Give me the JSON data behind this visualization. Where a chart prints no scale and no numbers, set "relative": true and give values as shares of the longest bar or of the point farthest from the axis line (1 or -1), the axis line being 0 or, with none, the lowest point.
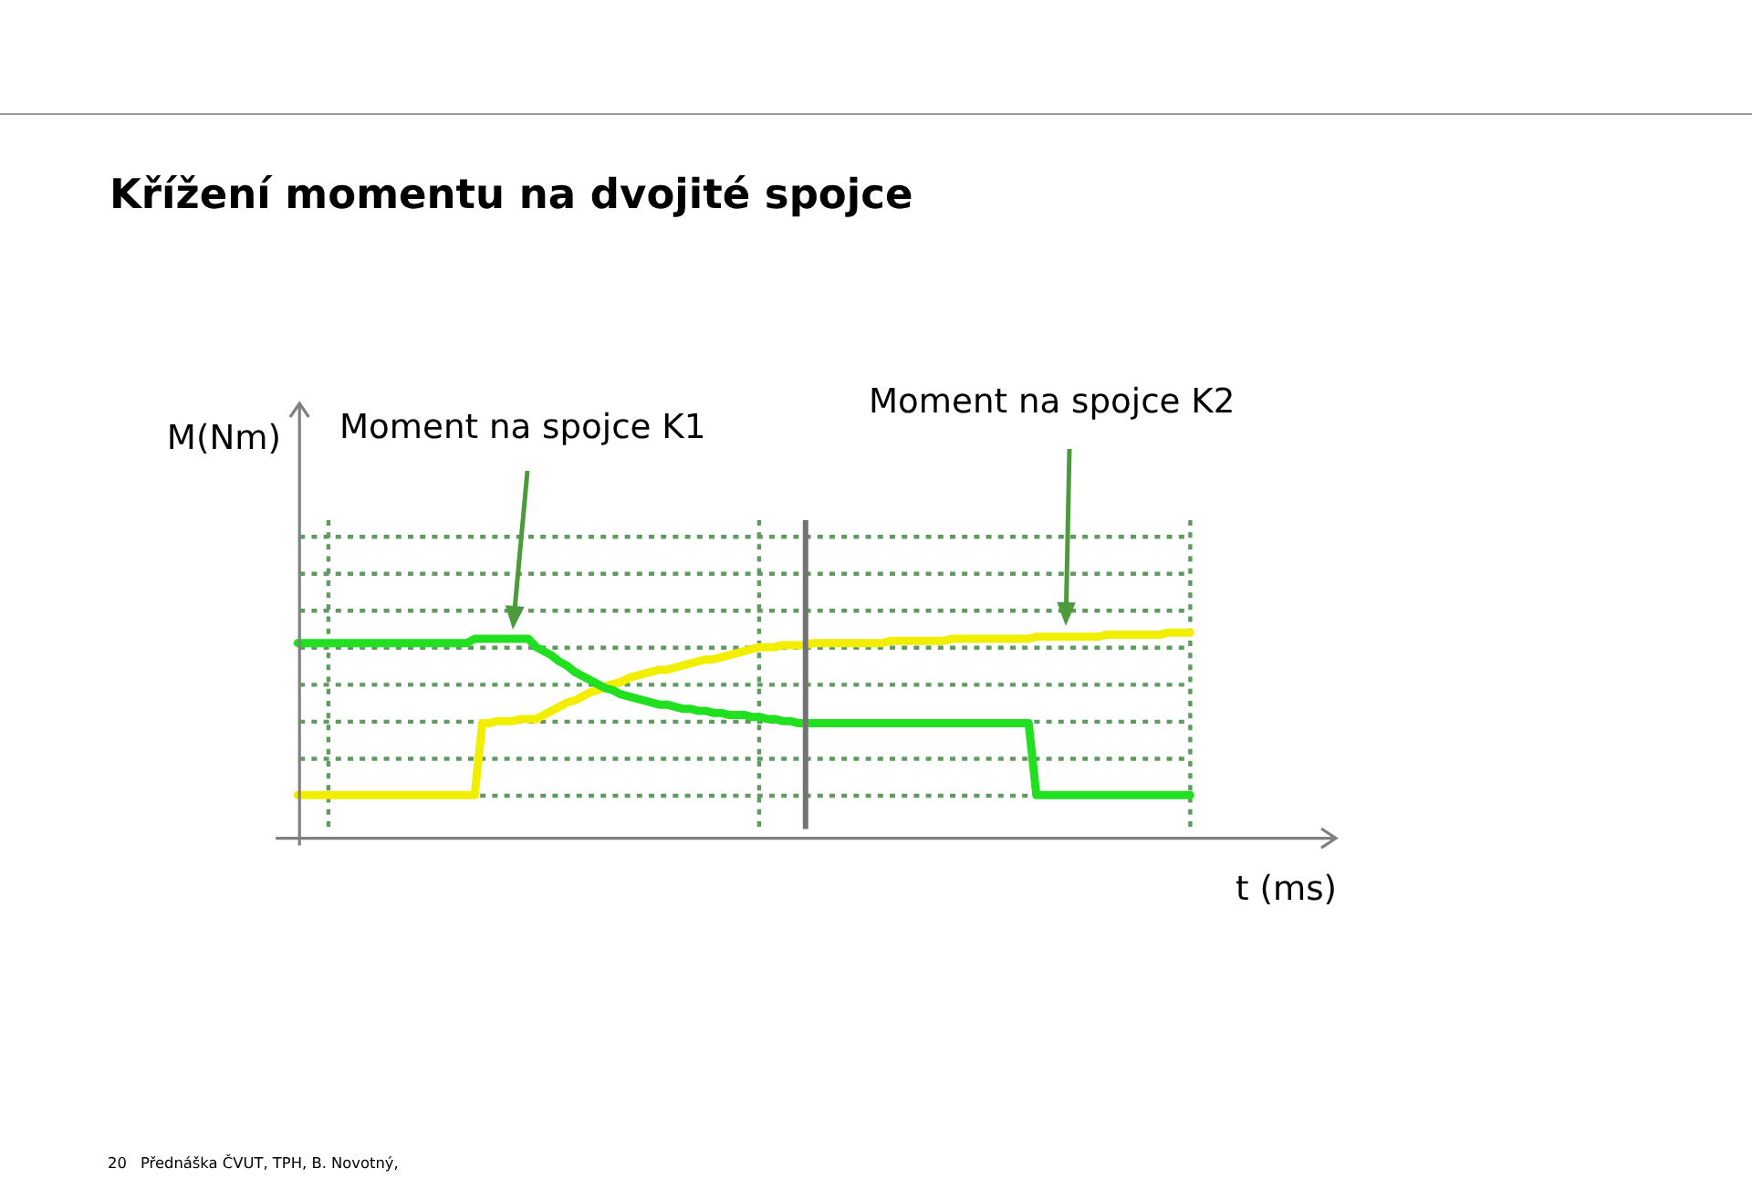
{
  "chart_data": {
    "type": "line",
    "title": "Křížení momentu na dvojité spojce",
    "xlabel": "t (ms)",
    "annotations": [
      "M(Nm)",
      "Moment na spojce K1",
      "Moment na spojce K2",
      "20",
      "Přednáška ČVUT, TPH, B. Novotný,"
    ],
    "relative": true,
    "grid": true,
    "tick_labels": false,
    "categories": [
      null,
      null,
      null,
      null,
      null,
      null,
      null,
      null,
      null,
      null,
      null,
      null,
      null,
      null,
      null,
      null,
      null,
      null,
      null,
      null,
      null,
      null,
      null,
      null,
      null,
      null,
      null,
      null,
      null,
      null,
      null,
      null,
      null,
      null,
      null,
      null,
      null,
      null,
      null,
      null,
      null,
      null,
      null,
      null,
      null,
      null,
      null,
      null,
      null,
      null,
      null,
      null,
      null,
      null,
      null,
      null,
      null,
      null,
      null,
      null,
      null,
      null,
      null,
      null,
      null,
      null,
      null,
      null,
      null,
      null,
      null,
      null,
      null,
      null,
      null,
      null,
      null,
      null,
      null,
      null,
      null,
      null,
      null,
      null,
      null,
      null,
      null,
      null,
      null,
      null,
      null,
      null,
      null,
      null,
      null,
      null,
      null,
      null,
      null,
      null,
      null,
      null,
      null,
      null,
      null,
      null,
      null,
      null,
      null,
      null,
      null,
      null,
      null,
      null,
      null,
      null,
      null
    ],
    "series": [
      {
        "color": "#20e020",
        "values": [
          0.95,
          0.95,
          0.95,
          0.95,
          0.95,
          0.95,
          0.95,
          0.95,
          0.95,
          0.95,
          0.95,
          0.95,
          0.95,
          0.95,
          0.95,
          0.95,
          0.95,
          0.95,
          0.95,
          0.95,
          0.95,
          0.95,
          0.95,
          0.97,
          0.97,
          0.97,
          0.97,
          0.97,
          0.97,
          0.97,
          0.97,
          0.93,
          0.91,
          0.89,
          0.86,
          0.84,
          0.81,
          0.79,
          0.77,
          0.75,
          0.73,
          0.72,
          0.7,
          0.69,
          0.68,
          0.67,
          0.66,
          0.65,
          0.65,
          0.64,
          0.63,
          0.63,
          0.62,
          0.62,
          0.61,
          0.61,
          0.6,
          0.6,
          0.6,
          0.59,
          0.59,
          0.58,
          0.58,
          0.57,
          0.57,
          0.56,
          0.56,
          0.56,
          0.56,
          0.56,
          0.56,
          0.56,
          0.56,
          0.56,
          0.56,
          0.56,
          0.56,
          0.56,
          0.56,
          0.56,
          0.56,
          0.56,
          0.56,
          0.56,
          0.56,
          0.56,
          0.56,
          0.56,
          0.56,
          0.56,
          0.56,
          0.56,
          0.56,
          0.56,
          0.56,
          0.56,
          0.21,
          0.21,
          0.21,
          0.21,
          0.21,
          0.21,
          0.21,
          0.21,
          0.21,
          0.21,
          0.21,
          0.21,
          0.21,
          0.21,
          0.21,
          0.21,
          0.21,
          0.21,
          0.21,
          0.21,
          0.21
        ]
      },
      {
        "color": "#f2ee00",
        "values": [
          0.21,
          0.21,
          0.21,
          0.21,
          0.21,
          0.21,
          0.21,
          0.21,
          0.21,
          0.21,
          0.21,
          0.21,
          0.21,
          0.21,
          0.21,
          0.21,
          0.21,
          0.21,
          0.21,
          0.21,
          0.21,
          0.21,
          0.21,
          0.21,
          0.56,
          0.56,
          0.57,
          0.57,
          0.57,
          0.58,
          0.58,
          0.58,
          0.6,
          0.62,
          0.64,
          0.66,
          0.67,
          0.69,
          0.71,
          0.72,
          0.74,
          0.75,
          0.76,
          0.78,
          0.79,
          0.8,
          0.81,
          0.82,
          0.82,
          0.83,
          0.84,
          0.85,
          0.86,
          0.87,
          0.87,
          0.88,
          0.89,
          0.9,
          0.91,
          0.92,
          0.93,
          0.93,
          0.93,
          0.94,
          0.94,
          0.94,
          0.94,
          0.95,
          0.95,
          0.95,
          0.95,
          0.95,
          0.95,
          0.95,
          0.95,
          0.95,
          0.95,
          0.96,
          0.96,
          0.96,
          0.96,
          0.96,
          0.96,
          0.96,
          0.96,
          0.97,
          0.97,
          0.97,
          0.97,
          0.97,
          0.97,
          0.97,
          0.97,
          0.97,
          0.97,
          0.97,
          0.98,
          0.98,
          0.98,
          0.98,
          0.98,
          0.98,
          0.98,
          0.98,
          0.98,
          0.99,
          0.99,
          0.99,
          0.99,
          0.99,
          0.99,
          0.99,
          0.99,
          1,
          1,
          1,
          1
        ]
      }
    ]
  }
}
